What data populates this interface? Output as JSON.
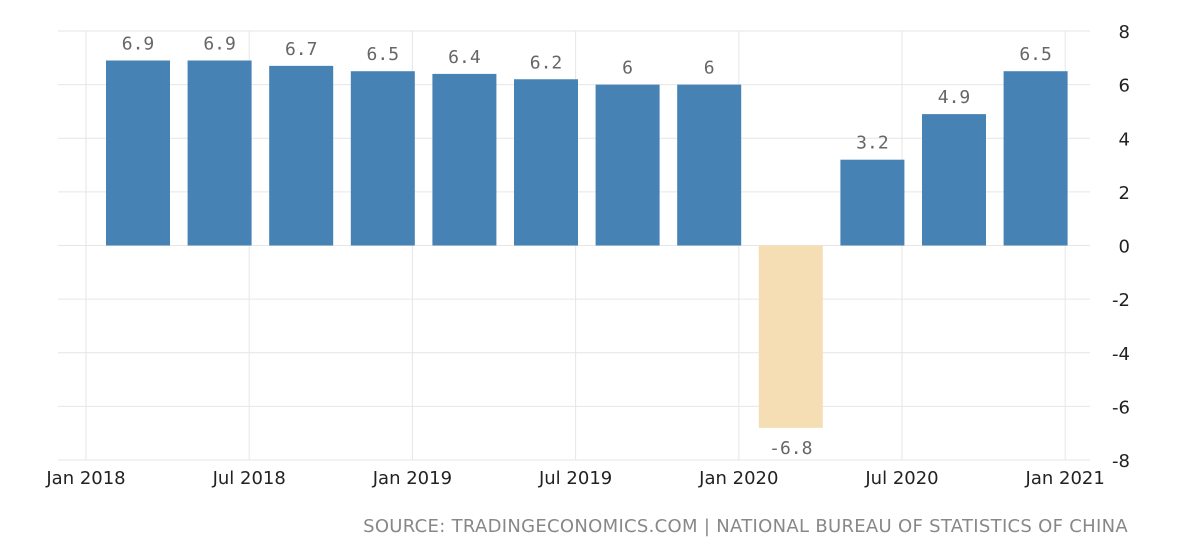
{
  "chart_data": {
    "type": "bar",
    "title": "",
    "xlabel": "",
    "ylabel": "",
    "categories": [
      "2018-Q1",
      "2018-Q2",
      "2018-Q3",
      "2018-Q4",
      "2019-Q1",
      "2019-Q2",
      "2019-Q3",
      "2019-Q4",
      "2020-Q1",
      "2020-Q2",
      "2020-Q3",
      "2020-Q4"
    ],
    "values": [
      6.9,
      6.9,
      6.7,
      6.5,
      6.4,
      6.2,
      6,
      6,
      -6.8,
      3.2,
      4.9,
      6.5
    ],
    "data_labels": [
      "6.9",
      "6.9",
      "6.7",
      "6.5",
      "6.4",
      "6.2",
      "6",
      "6",
      "-6.8",
      "3.2",
      "4.9",
      "6.5"
    ],
    "x_tick_labels": [
      "Jan 2018",
      "Jul 2018",
      "Jan 2019",
      "Jul 2019",
      "Jan 2020",
      "Jul 2020",
      "Jan 2021"
    ],
    "y_ticks": [
      8,
      6,
      4,
      2,
      0,
      -2,
      -4,
      -6,
      -8
    ],
    "ylim": [
      -8,
      8
    ],
    "y_axis_side": "right",
    "grid": true,
    "legend": false,
    "colors": {
      "positive": "#4682b4",
      "negative": "#f5deb3",
      "label": "#666666",
      "grid": "#e6e6e6",
      "tick": "#222222"
    }
  },
  "footer": {
    "source": "SOURCE: TRADINGECONOMICS.COM | NATIONAL BUREAU OF STATISTICS OF CHINA"
  }
}
